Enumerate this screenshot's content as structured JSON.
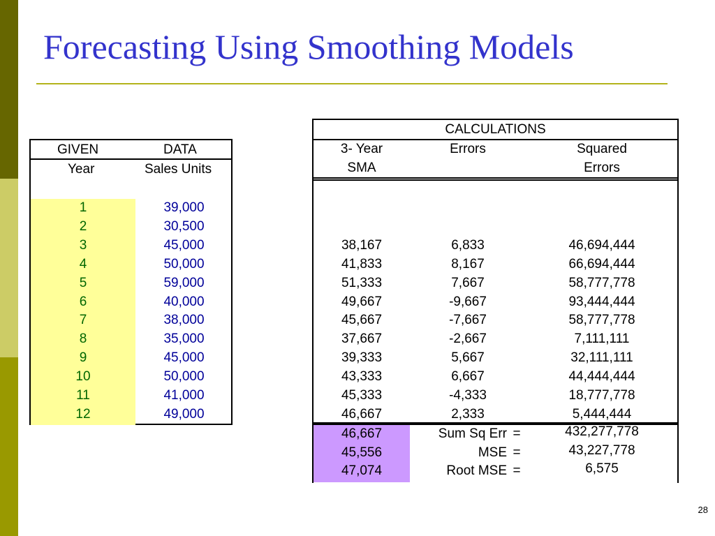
{
  "title": "Forecasting Using Smoothing Models",
  "page_number": "28",
  "given": {
    "header": [
      "GIVEN",
      "DATA"
    ],
    "subheader": [
      "Year",
      "Sales Units"
    ],
    "rows": [
      {
        "year": "1",
        "sales": "39,000"
      },
      {
        "year": "2",
        "sales": "30,500"
      },
      {
        "year": "3",
        "sales": "45,000"
      },
      {
        "year": "4",
        "sales": "50,000"
      },
      {
        "year": "5",
        "sales": "59,000"
      },
      {
        "year": "6",
        "sales": "40,000"
      },
      {
        "year": "7",
        "sales": "38,000"
      },
      {
        "year": "8",
        "sales": "35,000"
      },
      {
        "year": "9",
        "sales": "45,000"
      },
      {
        "year": "10",
        "sales": "50,000"
      },
      {
        "year": "11",
        "sales": "41,000"
      },
      {
        "year": "12",
        "sales": "49,000"
      }
    ]
  },
  "calculations": {
    "title": "CALCULATIONS",
    "headers": {
      "sma_1": "3- Year",
      "sma_2": "SMA",
      "err": "Errors",
      "sq_1": "Squared",
      "sq_2": "Errors"
    },
    "rows": [
      {
        "sma": "38,167",
        "err": "6,833",
        "sq": "46,694,444"
      },
      {
        "sma": "41,833",
        "err": "8,167",
        "sq": "66,694,444"
      },
      {
        "sma": "51,333",
        "err": "7,667",
        "sq": "58,777,778"
      },
      {
        "sma": "49,667",
        "err": "-9,667",
        "sq": "93,444,444"
      },
      {
        "sma": "45,667",
        "err": "-7,667",
        "sq": "58,777,778"
      },
      {
        "sma": "37,667",
        "err": "-2,667",
        "sq": "7,111,111"
      },
      {
        "sma": "39,333",
        "err": "5,667",
        "sq": "32,111,111"
      },
      {
        "sma": "43,333",
        "err": "6,667",
        "sq": "44,444,444"
      },
      {
        "sma": "45,333",
        "err": "-4,333",
        "sq": "18,777,778"
      },
      {
        "sma": "46,667",
        "err": "2,333",
        "sq": "5,444,444"
      }
    ],
    "footer": [
      {
        "sma": "46,667",
        "label": "Sum Sq Err",
        "eq": "=",
        "value": "432,277,778"
      },
      {
        "sma": "45,556",
        "label": "MSE",
        "eq": "=",
        "value": "43,227,778"
      },
      {
        "sma": "47,074",
        "label": "Root MSE",
        "eq": "=",
        "value": "6,575"
      }
    ]
  },
  "colors": {
    "title": "#3333cc",
    "year_text": "#006600",
    "sales_text": "#000099",
    "year_highlight": "#ffff99",
    "forecast_highlight": "#cc99ff"
  }
}
